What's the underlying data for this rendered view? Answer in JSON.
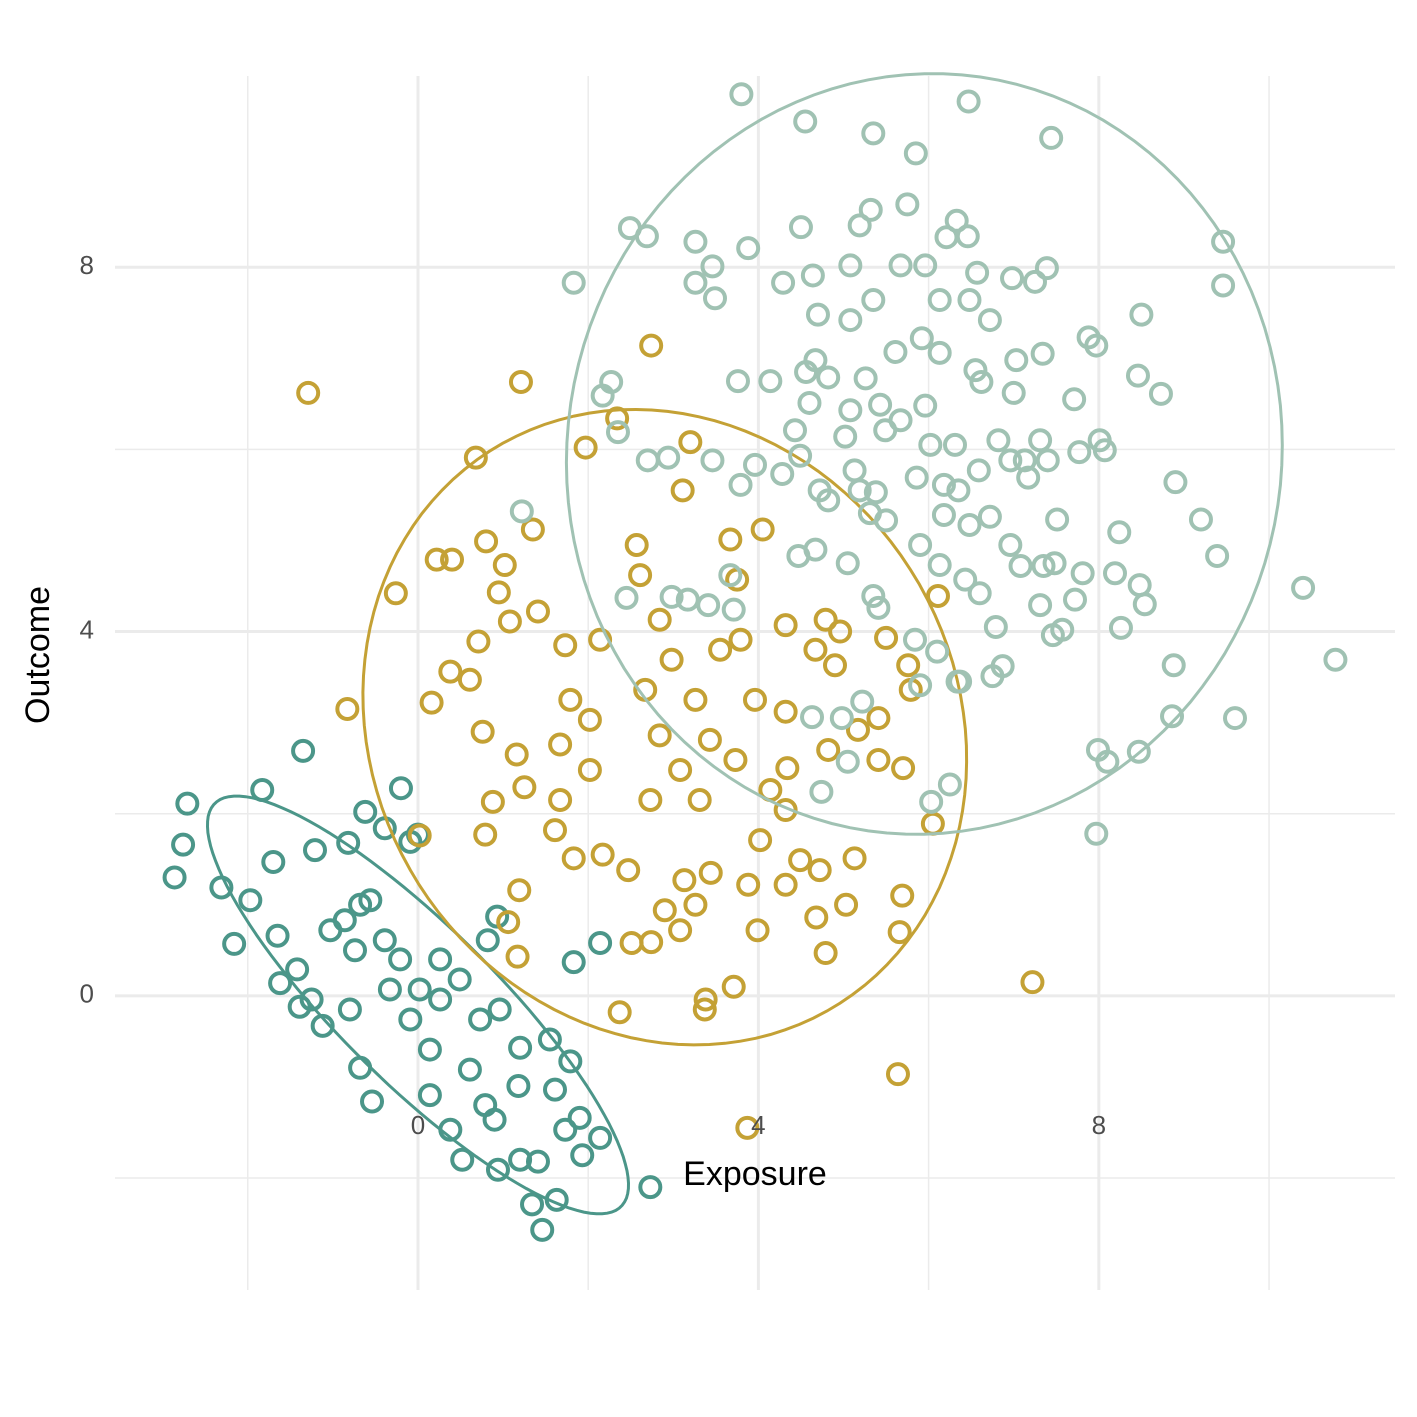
{
  "chart_data": {
    "type": "scatter",
    "x_label": "Exposure",
    "y_label": "Outcome",
    "xlim": [
      -3.56,
      11.48
    ],
    "ylim": [
      -3.23,
      10.1
    ],
    "xticks": [
      0,
      4,
      8
    ],
    "yticks": [
      0,
      4,
      8
    ],
    "xminorticks": [
      -2,
      2,
      6,
      10
    ],
    "yminorticks": [
      -2,
      2,
      6
    ],
    "grid": true,
    "series": [
      {
        "color": "#4b9689",
        "x": [
          -2.71,
          -2.86,
          -2.76,
          -2.31,
          -2.16,
          -1.83,
          -1.35,
          -1.7,
          -1.97,
          -1.65,
          -1.21,
          -0.82,
          -0.62,
          -0.2,
          -0.09,
          -0.39,
          -1.42,
          -1.62,
          -1.39,
          -1.12,
          -0.68,
          -0.54,
          -0.8,
          -1.03,
          -0.86,
          -0.56,
          -0.21,
          0.02,
          0.26,
          0.49,
          0.73,
          0.14,
          0.61,
          0.96,
          1.2,
          1.55,
          1.79,
          1.9,
          2.14,
          1.93,
          1.61,
          1.18,
          0.9,
          0.38,
          0.52,
          0.94,
          1.2,
          1.41,
          1.34,
          1.63,
          1.46,
          2.73,
          2.14,
          1.83,
          0.93,
          0.82,
          -0.68,
          -0.33,
          -0.09,
          0.26,
          -0.39,
          0.14,
          0.79,
          1.73,
          -1.25,
          -0.74,
          0.0
        ],
        "values": [
          2.11,
          1.3,
          1.66,
          1.19,
          0.57,
          2.26,
          2.69,
          1.47,
          1.05,
          0.66,
          1.6,
          1.68,
          2.02,
          2.28,
          1.69,
          1.84,
          0.29,
          0.14,
          -0.12,
          -0.33,
          -0.79,
          -1.16,
          -0.15,
          0.72,
          0.83,
          1.05,
          0.4,
          0.07,
          -0.04,
          0.18,
          -0.26,
          -0.59,
          -0.81,
          -0.15,
          -0.57,
          -0.48,
          -0.72,
          -1.34,
          -1.56,
          -1.75,
          -1.03,
          -0.99,
          -1.36,
          -1.47,
          -1.8,
          -1.91,
          -1.8,
          -1.82,
          -2.29,
          -2.24,
          -2.57,
          -2.1,
          0.58,
          0.37,
          0.87,
          0.61,
          1.0,
          0.07,
          -0.26,
          0.4,
          0.61,
          -1.09,
          -1.2,
          -1.47,
          -0.04,
          0.5,
          1.77
        ],
        "ellipse": {
          "center": [
            0.0,
            -0.1
          ],
          "u": [
            2.4,
            -2.2
          ],
          "v": [
            0.6,
            0.65
          ]
        }
      },
      {
        "color": "#c4a135",
        "x": [
          -1.29,
          1.21,
          2.74,
          0.68,
          1.97,
          2.34,
          3.2,
          3.11,
          -0.26,
          0.22,
          0.4,
          0.8,
          1.02,
          1.35,
          0.95,
          1.08,
          1.41,
          0.71,
          0.38,
          0.61,
          0.16,
          -0.83,
          0.76,
          1.16,
          1.25,
          0.88,
          0.79,
          0.02,
          1.19,
          1.17,
          1.06,
          1.73,
          2.14,
          1.79,
          2.02,
          1.67,
          2.02,
          1.67,
          1.61,
          1.83,
          2.17,
          2.47,
          2.37,
          2.57,
          2.61,
          2.84,
          2.98,
          2.67,
          2.84,
          2.73,
          3.08,
          3.31,
          3.43,
          3.26,
          3.55,
          3.79,
          3.67,
          4.05,
          3.75,
          3.96,
          3.73,
          4.14,
          4.32,
          4.02,
          4.49,
          4.72,
          5.13,
          4.68,
          5.03,
          4.79,
          4.32,
          4.79,
          4.96,
          4.9,
          4.67,
          4.32,
          4.34,
          4.82,
          5.17,
          5.41,
          5.41,
          5.7,
          5.76,
          5.79,
          5.5,
          6.11,
          6.05,
          5.69,
          5.66,
          7.22,
          5.64,
          3.38,
          3.37,
          3.71,
          3.87,
          3.99,
          2.9,
          3.13,
          3.08,
          2.74,
          2.51,
          3.26,
          3.44,
          3.88,
          4.32
        ],
        "values": [
          6.62,
          6.74,
          7.14,
          5.91,
          6.02,
          6.34,
          6.08,
          5.55,
          4.42,
          4.79,
          4.79,
          4.99,
          4.73,
          5.12,
          4.43,
          4.11,
          4.22,
          3.89,
          3.56,
          3.47,
          3.22,
          3.15,
          2.9,
          2.65,
          2.29,
          2.13,
          1.77,
          1.76,
          1.16,
          0.43,
          0.81,
          3.85,
          3.91,
          3.25,
          3.03,
          2.76,
          2.48,
          2.15,
          1.82,
          1.51,
          1.55,
          1.38,
          -0.18,
          4.95,
          4.62,
          4.13,
          3.69,
          3.36,
          2.86,
          2.15,
          2.48,
          2.15,
          2.81,
          3.25,
          3.8,
          3.91,
          5.01,
          5.12,
          4.57,
          3.25,
          2.59,
          2.26,
          2.04,
          1.71,
          1.49,
          1.38,
          1.51,
          0.86,
          1.0,
          0.47,
          4.07,
          4.13,
          4.0,
          3.63,
          3.8,
          3.12,
          2.5,
          2.7,
          2.92,
          3.05,
          2.59,
          2.5,
          3.63,
          3.36,
          3.93,
          4.39,
          1.89,
          1.1,
          0.7,
          0.15,
          -0.86,
          -0.04,
          -0.15,
          0.1,
          -1.45,
          0.72,
          0.94,
          1.27,
          0.72,
          0.59,
          0.58,
          1.0,
          1.35,
          1.22,
          1.22
        ],
        "ellipse": {
          "center": [
            2.9,
            2.95
          ],
          "u": [
            3.3,
            -1.6
          ],
          "v": [
            1.3,
            3.1
          ]
        }
      },
      {
        "color": "#a0c2b3",
        "x": [
          3.8,
          6.47,
          4.55,
          5.35,
          7.44,
          5.85,
          5.75,
          5.32,
          2.49,
          2.69,
          3.26,
          3.88,
          4.5,
          6.33,
          6.46,
          6.21,
          5.19,
          9.46,
          9.46,
          1.83,
          3.46,
          3.26,
          3.49,
          4.29,
          4.64,
          5.08,
          5.67,
          5.96,
          6.57,
          6.98,
          7.39,
          7.25,
          5.35,
          6.13,
          6.48,
          4.7,
          5.08,
          6.72,
          8.5,
          7.88,
          7.97,
          5.92,
          6.13,
          5.61,
          4.67,
          4.56,
          4.82,
          5.26,
          3.76,
          4.14,
          2.27,
          2.17,
          2.35,
          6.55,
          6.62,
          7.03,
          7.34,
          7.0,
          7.71,
          8.46,
          8.73,
          4.6,
          5.08,
          5.43,
          5.96,
          4.43,
          5.02,
          5.49,
          5.67,
          6.02,
          6.31,
          6.82,
          7.31,
          7.13,
          6.96,
          7.4,
          8.01,
          8.07,
          7.77,
          2.7,
          2.94,
          3.46,
          3.96,
          3.79,
          4.28,
          4.49,
          5.13,
          5.19,
          4.72,
          4.82,
          5.38,
          5.86,
          6.18,
          6.35,
          6.59,
          7.17,
          8.9,
          9.2,
          8.24,
          9.39,
          10.4,
          10.78,
          9.6,
          8.86,
          8.88,
          8.47,
          7.99,
          8.1,
          7.97,
          8.26,
          8.54,
          8.48,
          8.19,
          7.81,
          7.72,
          7.57,
          7.46,
          7.31,
          7.48,
          7.35,
          7.08,
          6.96,
          7.51,
          6.72,
          6.48,
          6.18,
          5.9,
          6.13,
          6.43,
          6.6,
          6.79,
          6.1,
          5.84,
          6.34,
          6.87,
          6.75,
          5.9,
          5.22,
          5.41,
          5.35,
          5.05,
          4.67,
          4.47,
          5.5,
          5.31,
          4.63,
          4.98,
          5.05,
          4.74,
          6.25,
          6.03,
          6.37,
          3.67,
          3.71,
          3.41,
          3.17,
          2.98,
          2.45,
          1.22
        ],
        "values": [
          9.9,
          9.82,
          9.6,
          9.47,
          9.42,
          9.25,
          8.69,
          8.63,
          8.43,
          8.34,
          8.28,
          8.21,
          8.44,
          8.51,
          8.34,
          8.33,
          8.46,
          8.28,
          7.8,
          7.83,
          8.01,
          7.83,
          7.66,
          7.83,
          7.91,
          8.02,
          8.02,
          8.02,
          7.94,
          7.88,
          7.99,
          7.84,
          7.64,
          7.64,
          7.64,
          7.48,
          7.42,
          7.42,
          7.48,
          7.23,
          7.14,
          7.22,
          7.06,
          7.07,
          6.98,
          6.85,
          6.79,
          6.78,
          6.75,
          6.75,
          6.74,
          6.59,
          6.19,
          6.87,
          6.74,
          6.98,
          7.05,
          6.62,
          6.55,
          6.81,
          6.61,
          6.51,
          6.43,
          6.49,
          6.48,
          6.21,
          6.14,
          6.21,
          6.32,
          6.05,
          6.05,
          6.1,
          6.1,
          5.88,
          5.88,
          5.88,
          6.1,
          5.99,
          5.97,
          5.88,
          5.91,
          5.88,
          5.83,
          5.61,
          5.73,
          5.93,
          5.77,
          5.55,
          5.55,
          5.44,
          5.53,
          5.69,
          5.61,
          5.55,
          5.77,
          5.69,
          5.64,
          5.23,
          5.09,
          4.83,
          4.48,
          3.69,
          3.05,
          3.07,
          3.63,
          2.68,
          2.7,
          2.57,
          1.78,
          4.04,
          4.3,
          4.51,
          4.64,
          4.64,
          4.35,
          4.02,
          3.96,
          4.29,
          4.75,
          4.72,
          4.72,
          4.95,
          5.23,
          5.26,
          5.17,
          5.28,
          4.95,
          4.73,
          4.57,
          4.42,
          4.05,
          3.78,
          3.91,
          3.45,
          3.62,
          3.51,
          3.41,
          3.23,
          4.26,
          4.39,
          4.75,
          4.9,
          4.83,
          5.22,
          5.3,
          3.06,
          3.05,
          2.57,
          2.24,
          2.32,
          2.13,
          3.45,
          4.62,
          4.24,
          4.29,
          4.35,
          4.38,
          4.37,
          5.32
        ],
        "ellipse": {
          "center": [
            5.95,
            5.95
          ],
          "u": [
            4.0,
            -1.2
          ],
          "v": [
            1.3,
            4.0
          ]
        }
      }
    ]
  }
}
